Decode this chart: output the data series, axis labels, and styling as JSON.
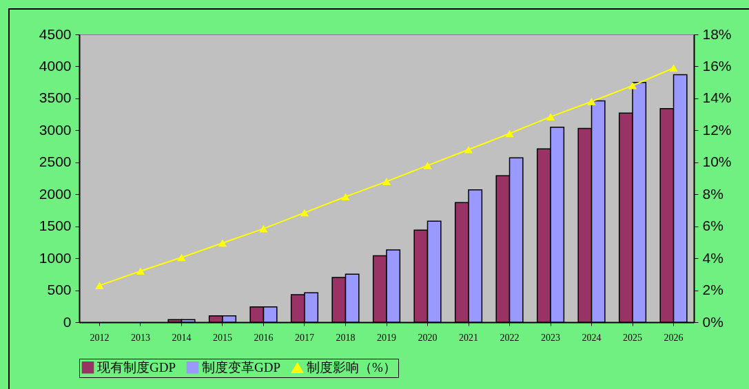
{
  "chart_data": {
    "type": "bar",
    "categories": [
      "2012",
      "2013",
      "2014",
      "2015",
      "2016",
      "2017",
      "2018",
      "2019",
      "2020",
      "2021",
      "2022",
      "2023",
      "2024",
      "2025",
      "2026"
    ],
    "series": [
      {
        "name": "现有制度GDP",
        "color": "#993366",
        "values": [
          null,
          null,
          40,
          100,
          240,
          430,
          700,
          1040,
          1440,
          1870,
          2290,
          2710,
          3030,
          3270,
          3340
        ]
      },
      {
        "name": "制度变革GDP",
        "color": "#9999ff",
        "values": [
          null,
          null,
          40,
          100,
          240,
          460,
          750,
          1130,
          1580,
          2070,
          2570,
          3050,
          3460,
          3750,
          3870
        ]
      },
      {
        "name": "制度影响（%）",
        "color": "#ffff00",
        "type": "line",
        "axis": "y2",
        "marker": "triangle",
        "values": [
          2.3,
          3.2,
          4.05,
          4.95,
          5.85,
          6.85,
          7.85,
          8.8,
          9.8,
          10.8,
          11.8,
          12.85,
          13.8,
          14.8,
          15.9
        ]
      }
    ],
    "ylim": [
      0,
      4500
    ],
    "yticks": [
      0,
      500,
      1000,
      1500,
      2000,
      2500,
      3000,
      3500,
      4000,
      4500
    ],
    "y2lim": [
      0,
      18
    ],
    "y2ticks": [
      {
        "value": 0,
        "label": "0%"
      },
      {
        "value": 2,
        "label": "2%"
      },
      {
        "value": 4,
        "label": "4%"
      },
      {
        "value": 6,
        "label": "6%"
      },
      {
        "value": 8,
        "label": "8%"
      },
      {
        "value": 10,
        "label": "10%"
      },
      {
        "value": 12,
        "label": "12%"
      },
      {
        "value": 14,
        "label": "14%"
      },
      {
        "value": 16,
        "label": "16%"
      },
      {
        "value": 18,
        "label": "18%"
      }
    ],
    "grid": false,
    "legend": "bottom"
  }
}
